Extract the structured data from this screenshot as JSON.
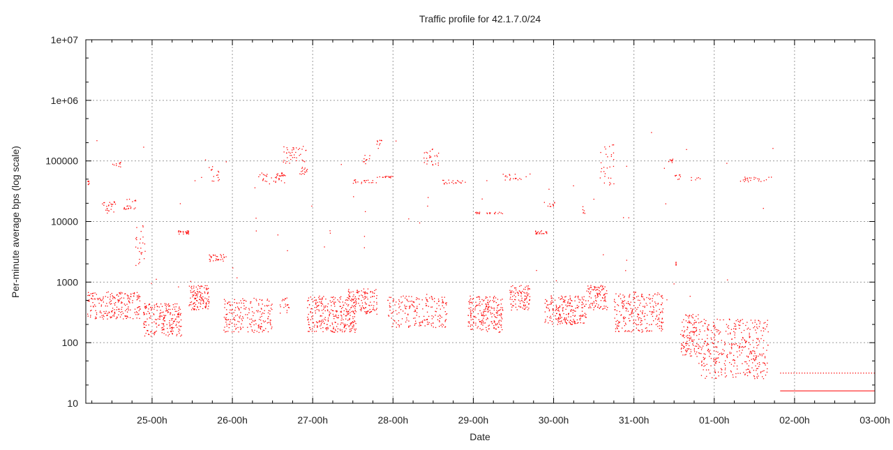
{
  "chart_data": {
    "type": "scatter",
    "title": "Traffic profile for 42.1.7.0/24",
    "xlabel": "Date",
    "ylabel": "Per-minute average bps (log scale)",
    "x_units": "hours since 24-00h",
    "xlim": [
      4.2,
      240
    ],
    "ylim": [
      10,
      10000000
    ],
    "yscale": "log",
    "grid": true,
    "series_color": "#ff0000",
    "x_ticks": [
      {
        "value": 24,
        "label": "25-00h"
      },
      {
        "value": 48,
        "label": "26-00h"
      },
      {
        "value": 72,
        "label": "27-00h"
      },
      {
        "value": 96,
        "label": "28-00h"
      },
      {
        "value": 120,
        "label": "29-00h"
      },
      {
        "value": 144,
        "label": "30-00h"
      },
      {
        "value": 168,
        "label": "31-00h"
      },
      {
        "value": 192,
        "label": "01-00h"
      },
      {
        "value": 216,
        "label": "02-00h"
      },
      {
        "value": 240,
        "label": "03-00h"
      }
    ],
    "y_ticks": [
      {
        "value": 10,
        "label": "10"
      },
      {
        "value": 100,
        "label": "100"
      },
      {
        "value": 1000,
        "label": "1000"
      },
      {
        "value": 10000,
        "label": "10000"
      },
      {
        "value": 100000,
        "label": "100000"
      },
      {
        "value": 1000000,
        "label": "1e+06"
      },
      {
        "value": 10000000,
        "label": "1e+07"
      }
    ],
    "point_clusters_note": "each cluster: [t_start_h, t_end_h, bps_low, bps_high, count]",
    "point_clusters": [
      [
        4.6,
        20.3,
        250,
        700,
        220
      ],
      [
        21.3,
        32.8,
        130,
        450,
        220
      ],
      [
        34.9,
        41,
        350,
        900,
        120
      ],
      [
        45.3,
        59.9,
        150,
        550,
        200
      ],
      [
        62,
        65,
        300,
        600,
        20
      ],
      [
        70.3,
        84.9,
        150,
        600,
        300
      ],
      [
        82,
        91.1,
        300,
        800,
        120
      ],
      [
        94.3,
        112,
        180,
        600,
        200
      ],
      [
        118.3,
        128.7,
        150,
        600,
        220
      ],
      [
        130.8,
        137,
        350,
        900,
        100
      ],
      [
        141.2,
        153.7,
        200,
        600,
        220
      ],
      [
        153.7,
        160,
        350,
        900,
        100
      ],
      [
        162,
        176.6,
        150,
        700,
        250
      ],
      [
        181.8,
        187.1,
        60,
        300,
        120
      ],
      [
        187.1,
        208,
        25,
        250,
        400
      ],
      [
        4.6,
        5.5,
        40000,
        48000,
        6
      ],
      [
        9,
        13,
        14000,
        22000,
        25
      ],
      [
        12,
        15,
        80000,
        100000,
        10
      ],
      [
        15,
        19,
        16000,
        24000,
        20
      ],
      [
        19,
        22,
        1800,
        9000,
        25
      ],
      [
        31.7,
        34.8,
        6300,
        7200,
        25
      ],
      [
        41,
        46,
        2200,
        2900,
        30
      ],
      [
        40.7,
        44,
        45000,
        90000,
        15
      ],
      [
        55.7,
        64,
        42000,
        65000,
        40
      ],
      [
        63,
        70,
        90000,
        180000,
        40
      ],
      [
        68,
        70.3,
        60000,
        80000,
        15
      ],
      [
        83.9,
        91.1,
        42000,
        50000,
        20
      ],
      [
        87,
        89,
        90000,
        130000,
        10
      ],
      [
        91,
        93.2,
        160000,
        230000,
        10
      ],
      [
        91,
        97,
        53000,
        57000,
        15
      ],
      [
        104.7,
        110,
        75000,
        160000,
        25
      ],
      [
        110,
        118.3,
        42000,
        50000,
        20
      ],
      [
        120.3,
        129,
        13500,
        14500,
        20
      ],
      [
        128.7,
        137,
        48000,
        62000,
        20
      ],
      [
        138,
        142,
        6300,
        7200,
        20
      ],
      [
        141,
        144.3,
        18000,
        22000,
        10
      ],
      [
        152.6,
        153.7,
        13000,
        18000,
        6
      ],
      [
        157.8,
        162,
        40000,
        200000,
        30
      ],
      [
        177.7,
        179.8,
        95000,
        110000,
        8
      ],
      [
        179.8,
        181.8,
        50000,
        60000,
        8
      ],
      [
        180.3,
        180.5,
        1800,
        2200,
        5
      ],
      [
        184,
        188,
        48000,
        55000,
        6
      ],
      [
        199.6,
        209,
        45000,
        55000,
        25
      ],
      [
        4,
        210,
        500,
        300000,
        60
      ]
    ],
    "baseline_line": {
      "from": 211.7,
      "to": 240,
      "value": 16
    },
    "baseline_dots": {
      "from": 211.7,
      "to": 240,
      "value": 32,
      "step_h": 0.8
    }
  }
}
